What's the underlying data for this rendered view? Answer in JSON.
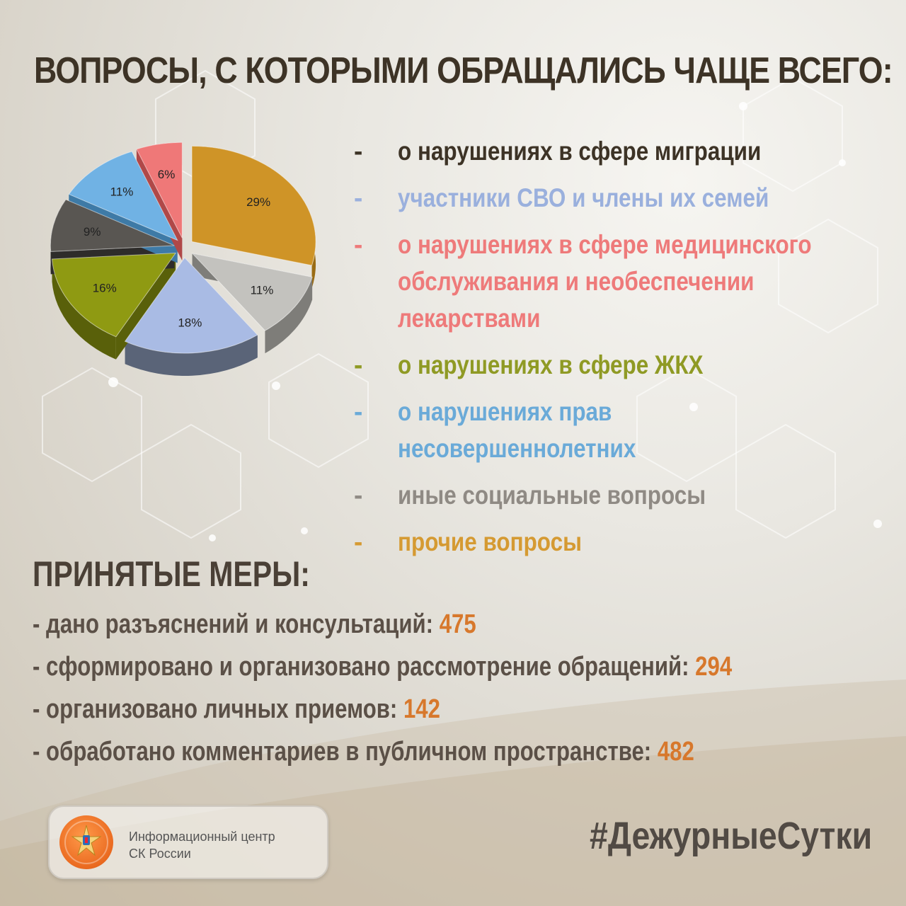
{
  "title": "ВОПРОСЫ, С КОТОРЫМИ ОБРАЩАЛИСЬ ЧАЩЕ ВСЕГО:",
  "legend": [
    {
      "dash": "-",
      "text": "о нарушениях в сфере миграции",
      "color": "#3d3326"
    },
    {
      "dash": "-",
      "text": "участники СВО и члены их семей",
      "color": "#9ab0dd"
    },
    {
      "dash": "-",
      "text": "о нарушениях в сфере медицинского обслуживания и необеспечении лекарствами",
      "color": "#ee7a7a"
    },
    {
      "dash": "-",
      "text": "о нарушениях в сфере ЖКХ",
      "color": "#8f9a24"
    },
    {
      "dash": "-",
      "text": "о нарушениях прав несовершеннолетних",
      "color": "#6aaad8"
    },
    {
      "dash": "-",
      "text": "иные социальные вопросы",
      "color": "#8f8a84"
    },
    {
      "dash": "-",
      "text": "прочие вопросы",
      "color": "#d59a32"
    }
  ],
  "chart_data": {
    "type": "pie",
    "slices": [
      {
        "label": "29%",
        "value": 29,
        "color": "#cf9427",
        "side": "#9a6c14"
      },
      {
        "label": "11%",
        "value": 11,
        "color": "#c3c2be",
        "side": "#7e7d79"
      },
      {
        "label": "18%",
        "value": 18,
        "color": "#a9bbe4",
        "side": "#5a6478"
      },
      {
        "label": "16%",
        "value": 16,
        "color": "#8f9a12",
        "side": "#59600a"
      },
      {
        "label": "9%",
        "value": 9,
        "color": "#595652",
        "side": "#2e2c2a"
      },
      {
        "label": "11%",
        "value": 11,
        "color": "#70b2e4",
        "side": "#3e7aa6"
      },
      {
        "label": "6%",
        "value": 6,
        "color": "#ef7878",
        "side": "#b04848"
      }
    ]
  },
  "measures_title": "ПРИНЯТЫЕ МЕРЫ:",
  "measures": [
    {
      "text": "- дано разъяснений и консультаций: ",
      "value": "475"
    },
    {
      "text": "- сформировано и организовано рассмотрение обращений: ",
      "value": "294"
    },
    {
      "text": "- организовано личных приемов: ",
      "value": "142"
    },
    {
      "text": "- обработано комментариев в публичном пространстве: ",
      "value": "482"
    }
  ],
  "logo": {
    "line1": "Информационный центр",
    "line2": "СК России",
    "icon": "sk-emblem-icon"
  },
  "hashtag": "#ДежурныеСутки"
}
